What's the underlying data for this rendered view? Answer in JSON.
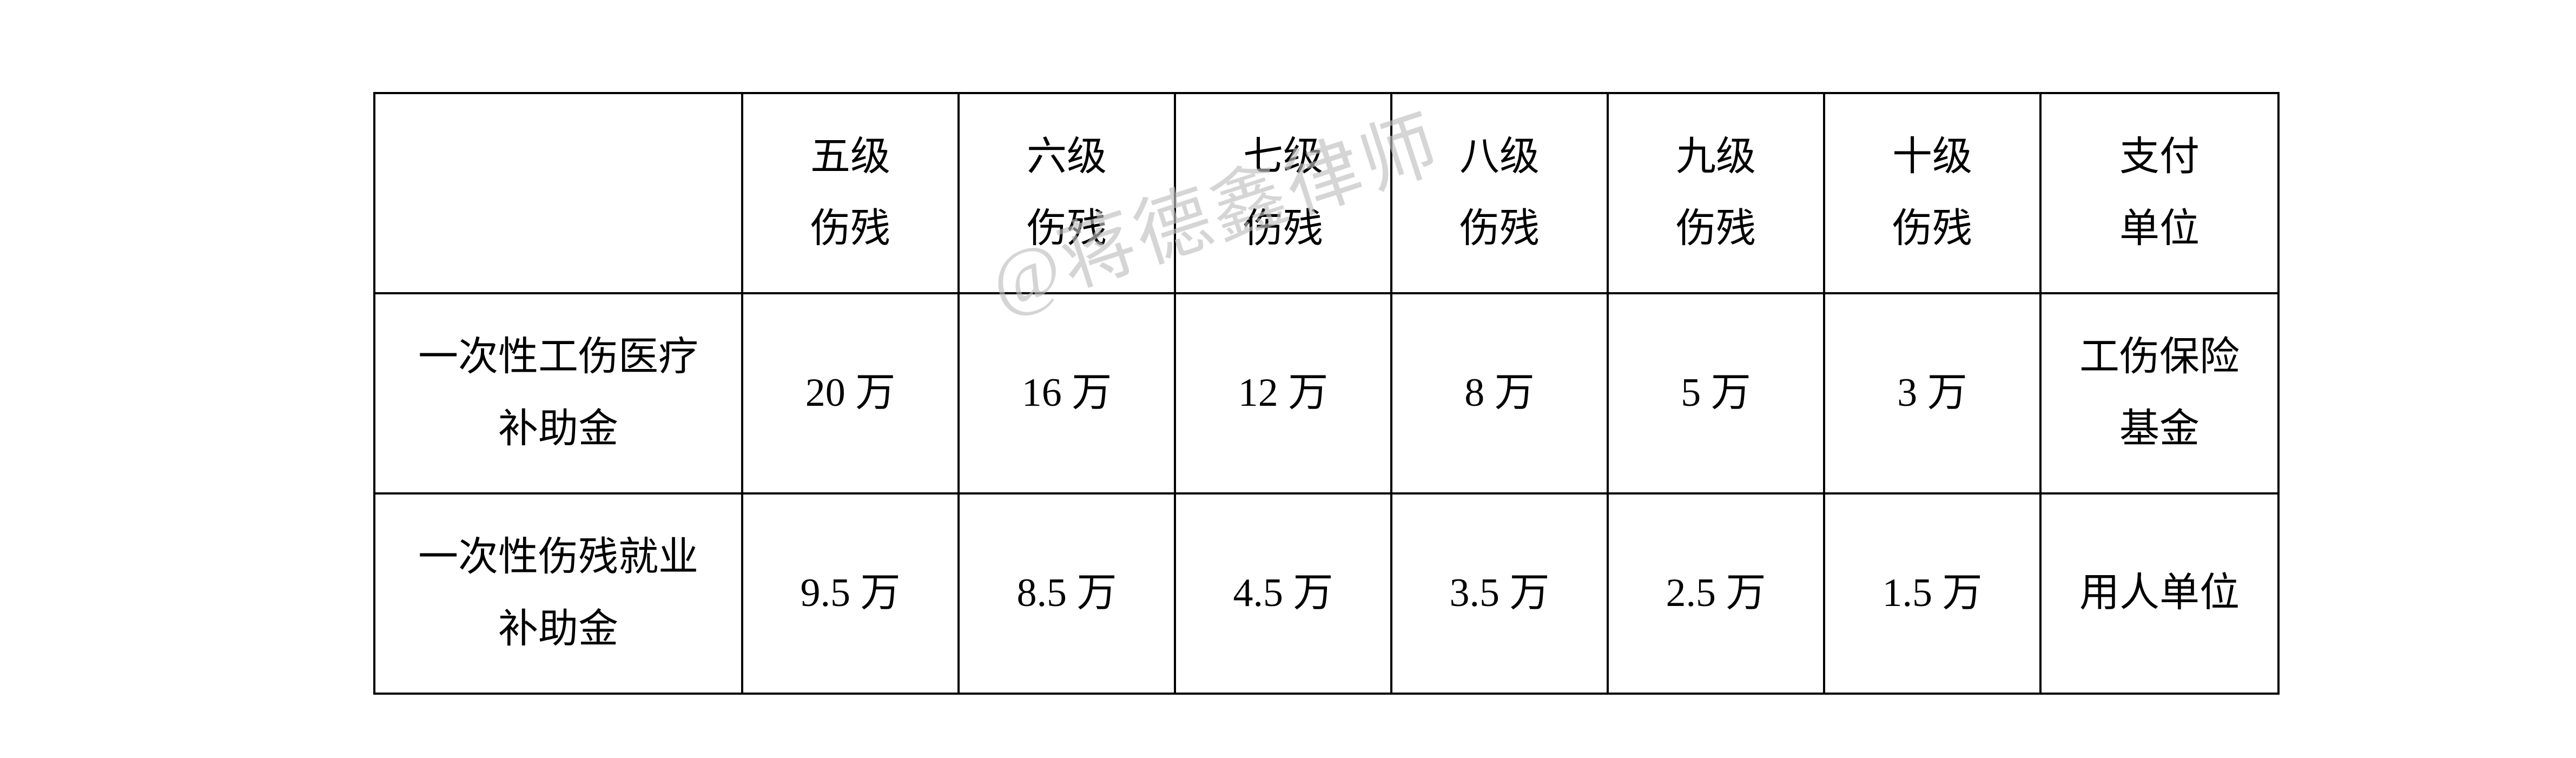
{
  "watermark": "@蒋德鑫律师",
  "table": {
    "columns": [
      "",
      "五级伤残",
      "六级伤残",
      "七级伤残",
      "八级伤残",
      "九级伤残",
      "十级伤残",
      "支付单位"
    ],
    "rows": [
      {
        "label": "一次性工伤医疗补助金",
        "values": [
          "20 万",
          "16 万",
          "12 万",
          "8 万",
          "5 万",
          "3 万"
        ],
        "payer": "工伤保险基金"
      },
      {
        "label": "一次性伤残就业补助金",
        "values": [
          "9.5 万",
          "8.5 万",
          "4.5 万",
          "3.5 万",
          "2.5 万",
          "1.5 万"
        ],
        "payer": "用人单位"
      }
    ],
    "border_color": "#000000",
    "background_color": "#ffffff",
    "font_size_pt": 56,
    "watermark_color": "#bfbfbf"
  }
}
